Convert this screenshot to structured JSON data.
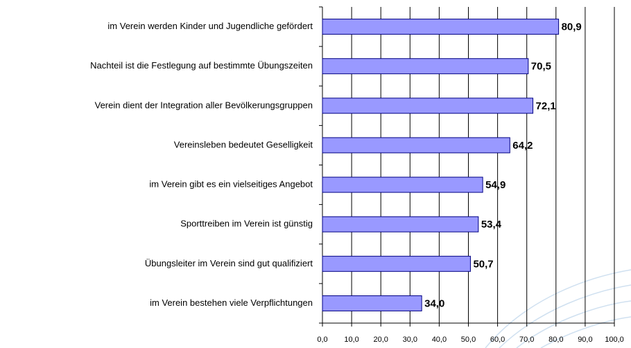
{
  "chart_data": {
    "type": "bar",
    "orientation": "horizontal",
    "categories": [
      "im Verein werden Kinder und Jugendliche gefördert",
      "Nachteil ist die Festlegung auf bestimmte Übungszeiten",
      "Verein dient der Integration aller Bevölkerungsgruppen",
      "Vereinsleben bedeutet Geselligkeit",
      "im Verein gibt es ein vielseitiges Angebot",
      "Sporttreiben im Verein ist günstig",
      "Übungsleiter im Verein sind gut qualifiziert",
      "im Verein bestehen viele Verpflichtungen"
    ],
    "values": [
      80.9,
      70.5,
      72.1,
      64.2,
      54.9,
      53.4,
      50.7,
      34.0
    ],
    "value_labels": [
      "80,9",
      "70,5",
      "72,1",
      "64,2",
      "54,9",
      "53,4",
      "50,7",
      "34,0"
    ],
    "color": "#9999ff",
    "xlim": [
      0,
      100
    ],
    "xticks": [
      {
        "value": 0,
        "label": "0,0"
      },
      {
        "value": 10,
        "label": "10,0"
      },
      {
        "value": 20,
        "label": "20,0"
      },
      {
        "value": 30,
        "label": "30,0"
      },
      {
        "value": 40,
        "label": "40,0"
      },
      {
        "value": 50,
        "label": "50,0"
      },
      {
        "value": 60,
        "label": "60,0"
      },
      {
        "value": 70,
        "label": "70,0"
      },
      {
        "value": 80,
        "label": "80,0"
      },
      {
        "value": 90,
        "label": "90,0"
      },
      {
        "value": 100,
        "label": "100,0"
      }
    ],
    "grid": true
  }
}
